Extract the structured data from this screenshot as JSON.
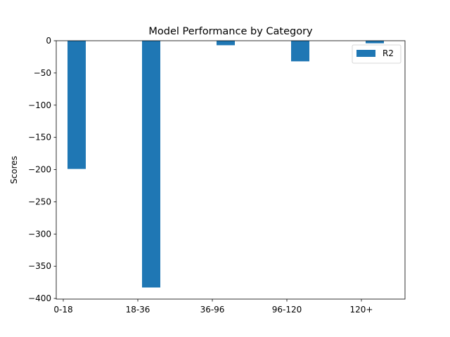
{
  "chart_data": {
    "type": "bar",
    "title": "Model Performance by Category",
    "xlabel": "",
    "ylabel": "Scores",
    "categories": [
      "0-18",
      "18-36",
      "36-96",
      "96-120",
      "120+"
    ],
    "series": [
      {
        "name": "R2",
        "values": [
          -199,
          -383,
          -7,
          -32,
          -4
        ],
        "color": "#1f77b4"
      }
    ],
    "ylim": [
      -401,
      0
    ],
    "yticks": [
      0,
      -50,
      -100,
      -150,
      -200,
      -250,
      -300,
      -350,
      -400
    ],
    "ytick_labels": [
      "0",
      "−50",
      "−100",
      "−150",
      "−200",
      "−250",
      "−300",
      "−350",
      "−400"
    ],
    "legend_position": "top-right",
    "grid": false
  }
}
